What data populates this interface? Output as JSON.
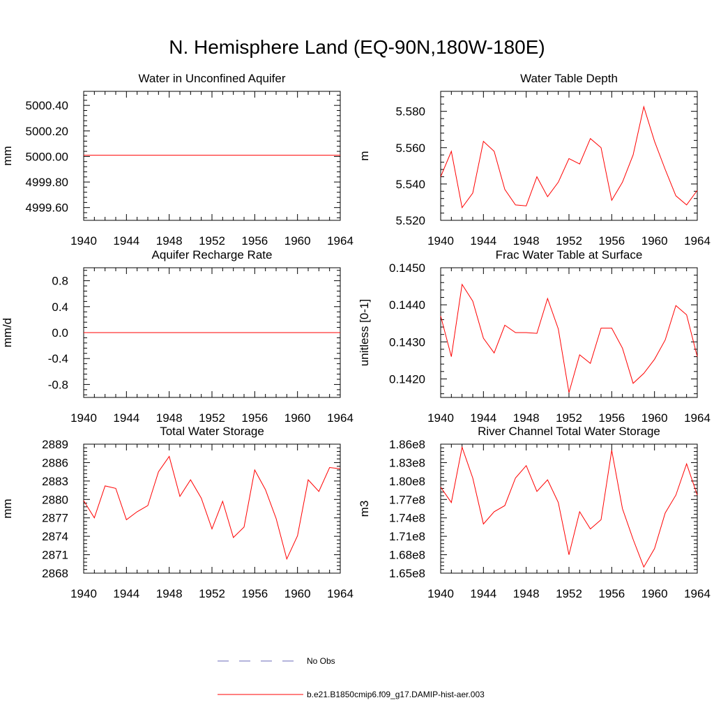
{
  "title": "N. Hemisphere Land (EQ-90N,180W-180E)",
  "line_color": "#ff0000",
  "obs_color": "#6a6ab8",
  "legend": [
    {
      "label": "No Obs",
      "style": "dashed"
    },
    {
      "label": "b.e21.B1850cmip6.f09_g17.DAMIP-hist-aer.003",
      "style": "solid"
    }
  ],
  "chart_data": [
    {
      "type": "line",
      "title": "Water in Unconfined Aquifer",
      "ylabel": "mm",
      "xlim": [
        1940,
        1964
      ],
      "ylim": [
        4999.5,
        5000.51
      ],
      "xticks": [
        "1940",
        "1944",
        "1948",
        "1952",
        "1956",
        "1960",
        "1964"
      ],
      "yticks": [
        "4999.60",
        "4999.80",
        "5000.00",
        "5000.20",
        "5000.40"
      ],
      "ytick_values": [
        4999.6,
        4999.8,
        5000.0,
        5000.2,
        5000.4
      ],
      "x": [
        1940,
        1964
      ],
      "values": [
        5000.01,
        5000.01
      ]
    },
    {
      "type": "line",
      "title": "Water Table Depth",
      "ylabel": "m",
      "xlim": [
        1940,
        1964
      ],
      "ylim": [
        5.52,
        5.591
      ],
      "xticks": [
        "1940",
        "1944",
        "1948",
        "1952",
        "1956",
        "1960",
        "1964"
      ],
      "yticks": [
        "5.520",
        "5.540",
        "5.560",
        "5.580"
      ],
      "ytick_values": [
        5.52,
        5.54,
        5.56,
        5.58
      ],
      "x": [
        1940,
        1941,
        1942,
        1943,
        1944,
        1945,
        1946,
        1947,
        1948,
        1949,
        1950,
        1951,
        1952,
        1953,
        1954,
        1955,
        1956,
        1957,
        1958,
        1959,
        1960,
        1961,
        1962,
        1963,
        1964
      ],
      "values": [
        5.544,
        5.558,
        5.527,
        5.535,
        5.5635,
        5.558,
        5.537,
        5.5285,
        5.528,
        5.544,
        5.533,
        5.541,
        5.554,
        5.551,
        5.565,
        5.56,
        5.531,
        5.541,
        5.556,
        5.5825,
        5.5635,
        5.548,
        5.5335,
        5.5285,
        5.5365
      ]
    },
    {
      "type": "line",
      "title": "Aquifer Recharge Rate",
      "ylabel": "mm/d",
      "xlim": [
        1940,
        1964
      ],
      "ylim": [
        -1.0,
        1.0
      ],
      "xticks": [
        "1940",
        "1944",
        "1948",
        "1952",
        "1956",
        "1960",
        "1964"
      ],
      "yticks": [
        "-0.8",
        "-0.4",
        "0.0",
        "0.4",
        "0.8"
      ],
      "ytick_values": [
        -0.8,
        -0.4,
        0.0,
        0.4,
        0.8
      ],
      "x": [
        1940,
        1964
      ],
      "values": [
        0.0,
        0.0
      ]
    },
    {
      "type": "line",
      "title": "Frac Water Table at Surface",
      "ylabel": "unitless [0-1]",
      "xlim": [
        1940,
        1964
      ],
      "ylim": [
        0.1415,
        0.145
      ],
      "xticks": [
        "1940",
        "1944",
        "1948",
        "1952",
        "1956",
        "1960",
        "1964"
      ],
      "yticks": [
        "0.1420",
        "0.1430",
        "0.1440",
        "0.1450"
      ],
      "ytick_values": [
        0.142,
        0.143,
        0.144,
        0.145
      ],
      "x": [
        1940,
        1941,
        1942,
        1943,
        1944,
        1945,
        1946,
        1947,
        1948,
        1949,
        1950,
        1951,
        1952,
        1953,
        1954,
        1955,
        1956,
        1957,
        1958,
        1959,
        1960,
        1961,
        1962,
        1963,
        1964
      ],
      "values": [
        0.1437,
        0.1426,
        0.14455,
        0.1441,
        0.1431,
        0.1427,
        0.14345,
        0.14325,
        0.14325,
        0.14323,
        0.14417,
        0.14335,
        0.14163,
        0.14265,
        0.14242,
        0.14337,
        0.14337,
        0.14283,
        0.14188,
        0.14215,
        0.14253,
        0.14305,
        0.14398,
        0.14373,
        0.1426
      ]
    },
    {
      "type": "line",
      "title": "Total Water Storage",
      "ylabel": "mm",
      "xlim": [
        1940,
        1964
      ],
      "ylim": [
        2868,
        2889
      ],
      "xticks": [
        "1940",
        "1944",
        "1948",
        "1952",
        "1956",
        "1960",
        "1964"
      ],
      "yticks": [
        "2868",
        "2871",
        "2874",
        "2877",
        "2880",
        "2883",
        "2886",
        "2889"
      ],
      "ytick_values": [
        2868,
        2871,
        2874,
        2877,
        2880,
        2883,
        2886,
        2889
      ],
      "x": [
        1940,
        1941,
        1942,
        1943,
        1944,
        1945,
        1946,
        1947,
        1948,
        1949,
        1950,
        1951,
        1952,
        1953,
        1954,
        1955,
        1956,
        1957,
        1958,
        1959,
        1960,
        1961,
        1962,
        1963,
        1964
      ],
      "values": [
        2879.8,
        2877.0,
        2882.2,
        2881.8,
        2876.7,
        2878.0,
        2879.0,
        2884.5,
        2887.0,
        2880.5,
        2883.2,
        2880.2,
        2875.2,
        2879.7,
        2873.8,
        2875.5,
        2884.8,
        2881.6,
        2876.9,
        2870.3,
        2874.1,
        2883.2,
        2881.3,
        2885.2,
        2885.0
      ]
    },
    {
      "type": "line",
      "title": "River Channel Total Water Storage",
      "ylabel": "m3",
      "xlim": [
        1940,
        1964
      ],
      "ylim": [
        165000000.0,
        186000000.0
      ],
      "xticks": [
        "1940",
        "1944",
        "1948",
        "1952",
        "1956",
        "1960",
        "1964"
      ],
      "yticks": [
        "1.65e8",
        "1.68e8",
        "1.71e8",
        "1.74e8",
        "1.77e8",
        "1.80e8",
        "1.83e8",
        "1.86e8"
      ],
      "ytick_values": [
        165000000.0,
        168000000.0,
        171000000.0,
        174000000.0,
        177000000.0,
        180000000.0,
        183000000.0,
        186000000.0
      ],
      "x": [
        1940,
        1941,
        1942,
        1943,
        1944,
        1945,
        1946,
        1947,
        1948,
        1949,
        1950,
        1951,
        1952,
        1953,
        1954,
        1955,
        1956,
        1957,
        1958,
        1959,
        1960,
        1961,
        1962,
        1963,
        1964
      ],
      "values": [
        179000000.0,
        176500000.0,
        185500000.0,
        180500000.0,
        173000000.0,
        175000000.0,
        176000000.0,
        180500000.0,
        182500000.0,
        178300000.0,
        180200000.0,
        176500000.0,
        168000000.0,
        175000000.0,
        172200000.0,
        173700000.0,
        185000000.0,
        175500000.0,
        170500000.0,
        166000000.0,
        169000000.0,
        174800000.0,
        177700000.0,
        182800000.0,
        177700000.0
      ]
    }
  ]
}
